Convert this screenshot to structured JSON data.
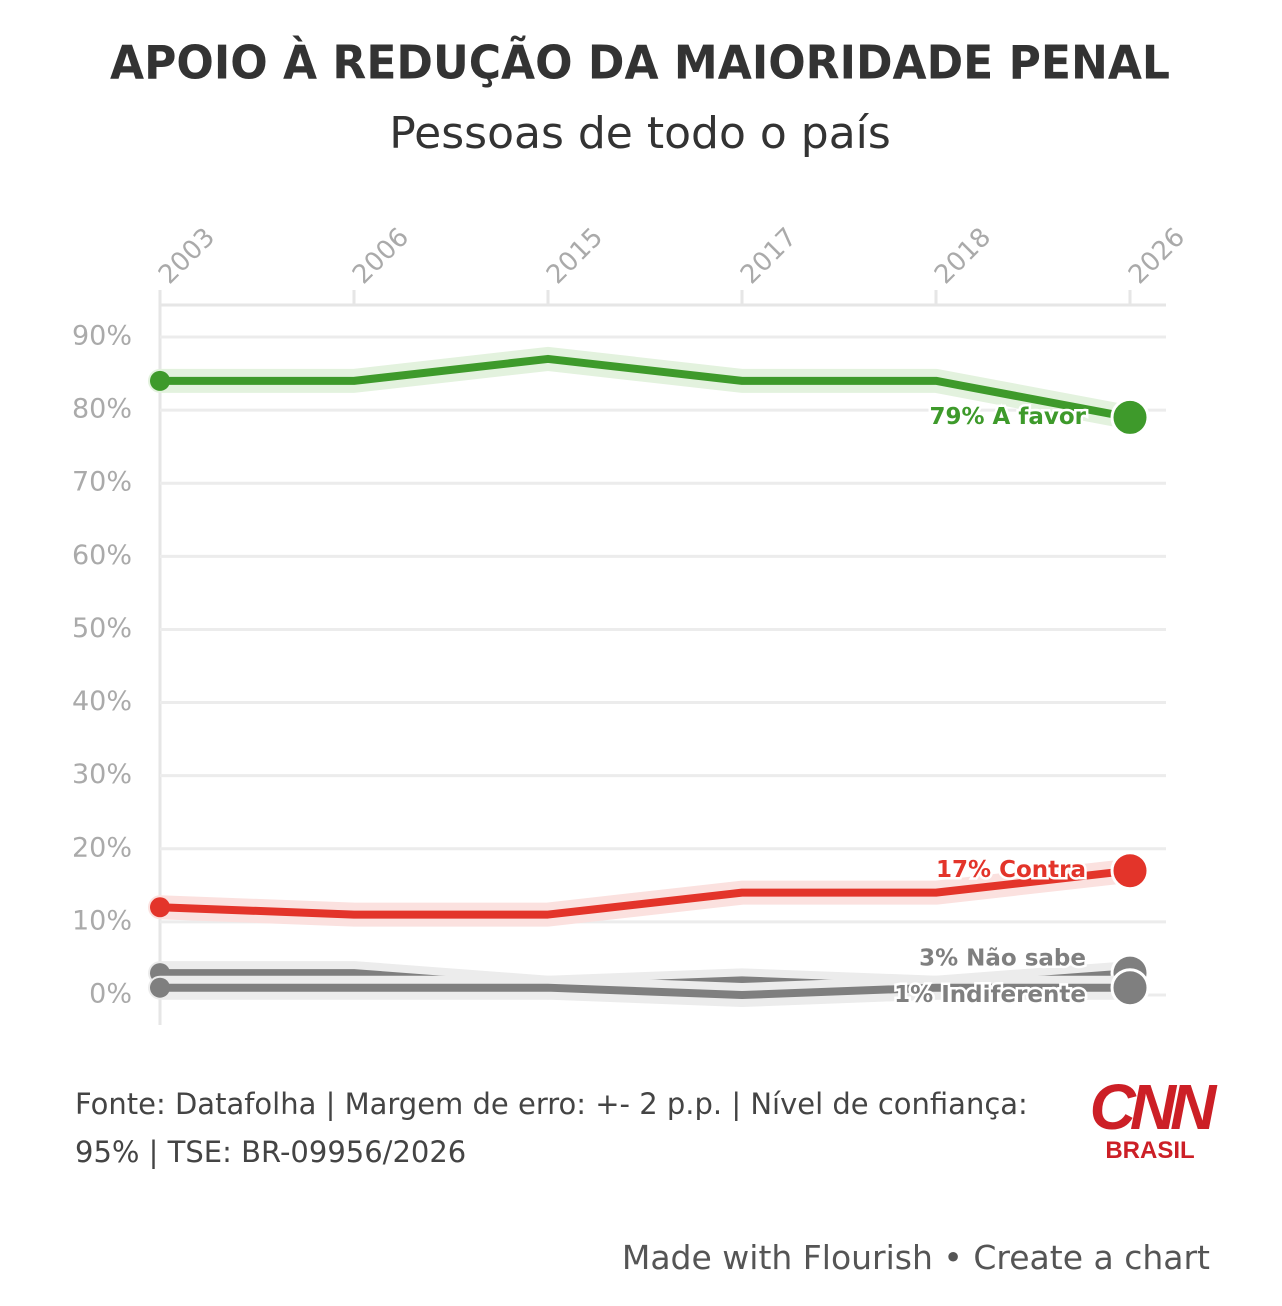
{
  "chart_data": {
    "type": "line",
    "title": "APOIO À REDUÇÃO DA MAIORIDADE PENAL",
    "subtitle": "Pessoas de todo o país",
    "categories": [
      "2003",
      "2006",
      "2015",
      "2017",
      "2018",
      "2026"
    ],
    "series": [
      {
        "color": "#3e9a2b",
        "halo": "#e3f2de",
        "values": [
          84,
          84,
          87,
          84,
          84,
          79
        ],
        "value_labels": [
          null,
          null,
          null,
          null,
          null,
          "79% A favor"
        ]
      },
      {
        "color": "#e3342a",
        "halo": "#fbe1df",
        "values": [
          12,
          11,
          11,
          14,
          14,
          17
        ],
        "value_labels": [
          null,
          null,
          null,
          null,
          null,
          "17% Contra"
        ]
      },
      {
        "color": "#7f7f7f",
        "halo": "#ececec",
        "values": [
          3,
          3,
          1,
          2,
          1,
          3
        ],
        "value_labels": [
          null,
          null,
          null,
          null,
          null,
          "3% Não sabe"
        ]
      },
      {
        "color": "#7f7f7f",
        "halo": "#ececec",
        "values": [
          1,
          1,
          1,
          0,
          1,
          1
        ],
        "value_labels": [
          null,
          null,
          null,
          null,
          null,
          "1% Indiferente"
        ]
      }
    ],
    "ylim": [
      0,
      90
    ],
    "yticks": [
      {
        "value": 0,
        "label": "0%"
      },
      {
        "value": 10,
        "label": "10%"
      },
      {
        "value": 20,
        "label": "20%"
      },
      {
        "value": 30,
        "label": "30%"
      },
      {
        "value": 40,
        "label": "40%"
      },
      {
        "value": 50,
        "label": "50%"
      },
      {
        "value": 60,
        "label": "60%"
      },
      {
        "value": 70,
        "label": "70%"
      },
      {
        "value": 80,
        "label": "80%"
      },
      {
        "value": 90,
        "label": "90%"
      }
    ],
    "grid": true
  },
  "source": "Fonte: Datafolha | Margem de erro: +- 2 p.p. | Nível de confiança: 95% | TSE: BR-09956/2026",
  "logo": {
    "text": "CNN",
    "subtitle": "BRASIL"
  },
  "footer": {
    "made_with": "Made with Flourish",
    "create": "Create a chart"
  }
}
